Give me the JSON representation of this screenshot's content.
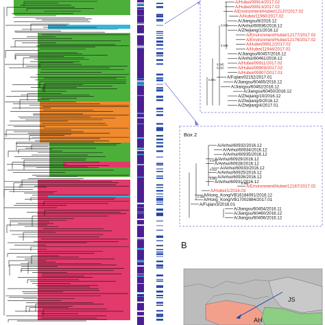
{
  "colors": {
    "clade_green": "#4caf3a",
    "clade_pink": "#e23a6b",
    "clade_orange": "#f08a2c",
    "clade_cyan": "#35b6d8",
    "purple_bar": "#4a1f92",
    "blue_marks": "#2347a6",
    "highlight_red": "#e8312a",
    "box_border": "#7a7ad8",
    "map_province": "#f2a08c",
    "map_land": "#bcbcbc"
  },
  "box1": {
    "labels_top": [
      {
        "text": "A/Hubei/09914/2017.02",
        "red": true
      },
      {
        "text": "A/Hubei/09913/2017.02",
        "red": true
      },
      {
        "text": "A/Environment/Hubei/12137/2017.02",
        "red": true
      },
      {
        "text": "A/Hubei/11960/2017.02",
        "red": true
      },
      {
        "text": "A/Jiangsu/8/2016.12",
        "red": false
      },
      {
        "text": "A/Anhui/60936/2016.12",
        "red": false
      },
      {
        "text": "A/Zhejiang/1/2016.12",
        "red": false
      },
      {
        "text": "A/Environment/Hubei/12177/2017.02",
        "red": true
      },
      {
        "text": "A/Environment/Hubei/12176/2017.02",
        "red": true
      },
      {
        "text": "A/Hubei/09912/2017.02",
        "red": true
      },
      {
        "text": "A/Hubei/11944/2017.02",
        "red": true
      },
      {
        "text": "A/Jiangsu/60457/2016.12",
        "red": false
      },
      {
        "text": "A/Anhui/60461/2016.12",
        "red": false
      },
      {
        "text": "A/Hubei/09911/2017.02",
        "red": true
      },
      {
        "text": "A/Hubei/09909/2017.02",
        "red": true
      },
      {
        "text": "A/Hubei/09907/2017.01",
        "red": true
      },
      {
        "text": "A/Fujian/02152/2017.01",
        "red": false
      },
      {
        "text": "A/Jiangsu/60465/2016.12",
        "red": false
      },
      {
        "text": "A/Jiangsu/60462/2016.12",
        "red": false
      },
      {
        "text": "A/Jiangsu/60450/2016.12",
        "red": false
      },
      {
        "text": "A/Zhejiang/10/2016.12",
        "red": false
      },
      {
        "text": "A/Zhejiang/9/2016.12",
        "red": false
      },
      {
        "text": "A/Zhejiang/4/2017.01",
        "red": false
      }
    ],
    "supports": [
      "0.849",
      "0.948",
      "0.845",
      "0.820",
      "0.801"
    ]
  },
  "box2": {
    "title": "Box 2",
    "labels": [
      {
        "text": "A/Anhui/60932/2016.12",
        "red": false
      },
      {
        "text": "A/Anhui/60934/2016.12",
        "red": false
      },
      {
        "text": "A/Anhui/60935/2016.12",
        "red": false
      },
      {
        "text": "A/Anhui/60929/2016.12",
        "red": false
      },
      {
        "text": "A/Anhui/60928/2016.12",
        "red": false
      },
      {
        "text": "A/Anhui/60933/2016.12",
        "red": false
      },
      {
        "text": "A/Anhui/60925/2016.12",
        "red": false
      },
      {
        "text": "A/Anhui/60926/2016.12",
        "red": false
      },
      {
        "text": "A/Anhui/60931/2016.12",
        "red": false
      },
      {
        "text": "A/Environment/Hubei/12167/2017.02",
        "red": true
      },
      {
        "text": "A/Hubei/1/2016.03",
        "red": true
      },
      {
        "text": "A/Hong_Kong/VB16184091/2016.12",
        "red": false
      },
      {
        "text": "A/Hong_Kong/VB17002884/2017.01",
        "red": false
      },
      {
        "text": "A/Fujian/3/2016.01",
        "red": false
      },
      {
        "text": "A/Jiangsu/60454/2016.11",
        "red": false
      },
      {
        "text": "A/Jiangsu/60460/2016.12",
        "red": false
      },
      {
        "text": "A/Jiangsu/60456/2016.12",
        "red": false
      }
    ],
    "supports": [
      "0.978",
      "0.812",
      "0.981",
      "0.989",
      "0.986"
    ]
  },
  "panel_b": {
    "letter": "B",
    "labels": [
      "JS",
      "AH"
    ]
  }
}
